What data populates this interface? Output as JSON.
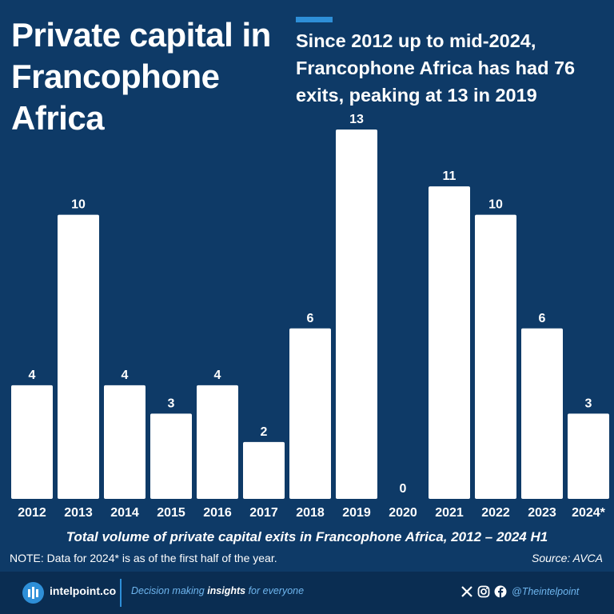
{
  "title": "Private capital in Francophone Africa",
  "headline": "Since 2012 up to mid-2024, Francophone Africa has had 76 exits, peaking at 13 in 2019",
  "chart_data": {
    "type": "bar",
    "categories": [
      "2012",
      "2013",
      "2014",
      "2015",
      "2016",
      "2017",
      "2018",
      "2019",
      "2020",
      "2021",
      "2022",
      "2023",
      "2024*"
    ],
    "values": [
      4,
      10,
      4,
      3,
      4,
      2,
      6,
      13,
      0,
      11,
      10,
      6,
      3
    ],
    "title": "Total volume of private capital exits in Francophone Africa, 2012 – 2024 H1",
    "xlabel": "",
    "ylabel": "",
    "ylim": [
      0,
      13
    ],
    "grid": false,
    "bar_color": "#ffffff"
  },
  "note": "NOTE: Data for 2024* is as of the first half of the year.",
  "source": "Source: AVCA",
  "footer": {
    "brand": "intelpoint.co",
    "tagline_before": "Decision making ",
    "tagline_bold": "insights",
    "tagline_after": " for everyone",
    "handle": "@Theintelpoint",
    "icons": [
      "x-icon",
      "instagram-icon",
      "facebook-icon"
    ]
  },
  "colors": {
    "background": "#0e3a67",
    "footer_background": "#0a2d52",
    "accent": "#2e8fd8"
  }
}
